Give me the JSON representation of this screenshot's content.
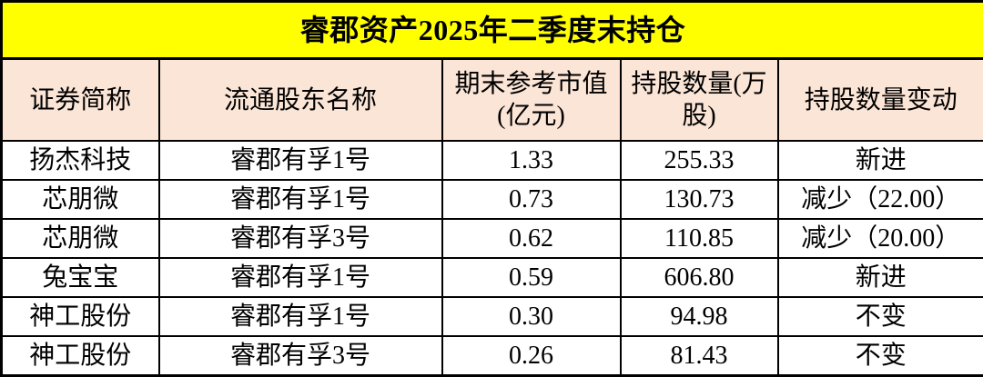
{
  "title": "睿郡资产2025年二季度末持仓",
  "colors": {
    "title_bg": "#FFFF00",
    "header_bg": "#FBE5D6",
    "grid_border": "#000000",
    "text": "#000000"
  },
  "table": {
    "columns": [
      "证券简称",
      "流通股东名称",
      "期末参考市值(亿元)",
      "持股数量(万股)",
      "持股数量变动"
    ],
    "rows": [
      [
        "扬杰科技",
        "睿郡有孚1号",
        "1.33",
        "255.33",
        "新进"
      ],
      [
        "芯朋微",
        "睿郡有孚1号",
        "0.73",
        "130.73",
        "减少（22.00）"
      ],
      [
        "芯朋微",
        "睿郡有孚3号",
        "0.62",
        "110.85",
        "减少（20.00）"
      ],
      [
        "兔宝宝",
        "睿郡有孚1号",
        "0.59",
        "606.80",
        "新进"
      ],
      [
        "神工股份",
        "睿郡有孚1号",
        "0.30",
        "94.98",
        "不变"
      ],
      [
        "神工股份",
        "睿郡有孚3号",
        "0.26",
        "81.43",
        "不变"
      ]
    ]
  }
}
